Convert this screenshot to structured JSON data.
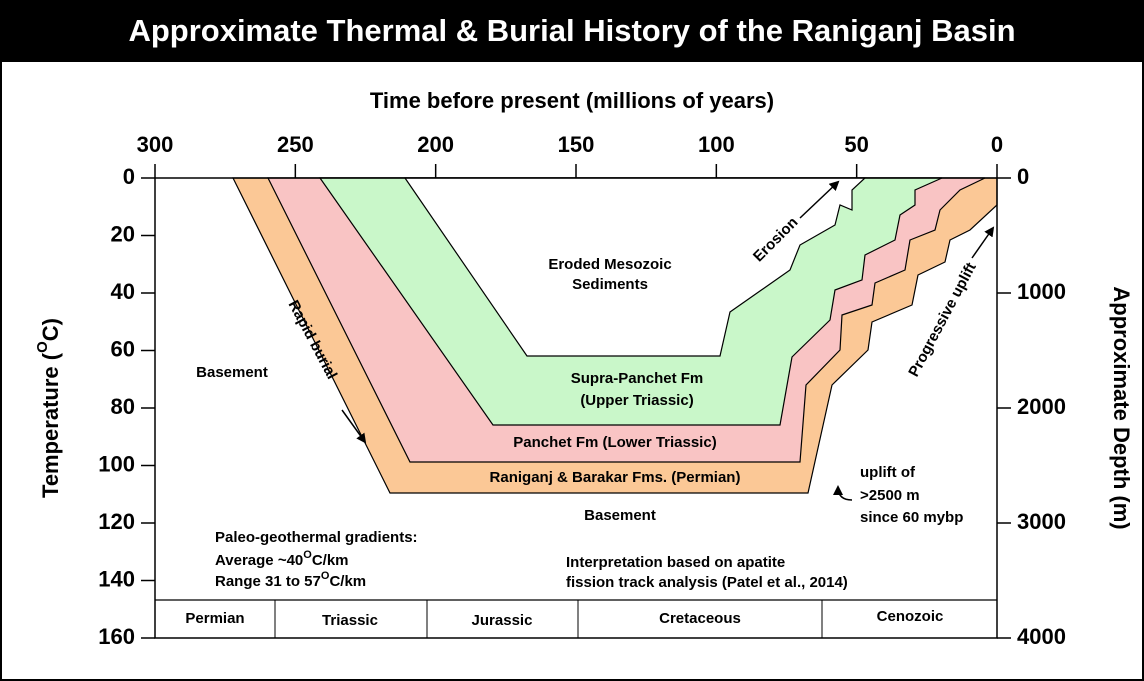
{
  "title": "Approximate Thermal & Burial History of the Raniganj Basin",
  "x_axis": {
    "label": "Time before present (millions of years)",
    "lim": [
      300,
      0
    ],
    "ticks": [
      300,
      250,
      200,
      150,
      100,
      50,
      0
    ]
  },
  "y_axis": {
    "label_parts": [
      "Temperature (",
      "O",
      "C)"
    ],
    "lim": [
      0,
      160
    ],
    "ticks": [
      0,
      20,
      40,
      60,
      80,
      100,
      120,
      140,
      160
    ]
  },
  "y2_axis": {
    "label": "Approximate Depth (m)",
    "lim": [
      0,
      4000
    ],
    "ticks": [
      0,
      1000,
      2000,
      3000,
      4000
    ]
  },
  "regions": {
    "eroded": [
      "Eroded Mesozoic",
      "Sediments"
    ],
    "supra_panchet": [
      "Supra-Panchet Fm",
      "(Upper Triassic)"
    ],
    "panchet": "Panchet Fm (Lower Triassic)",
    "raniganj": "Raniganj & Barakar Fms. (Permian)",
    "basement_left": "Basement",
    "basement_bottom": "Basement"
  },
  "annotations": {
    "rapid_burial": "Rapid burial",
    "erosion": "Erosion",
    "progressive_uplift": "Progressive uplift",
    "uplift": [
      "uplift of",
      ">2500 m",
      "since 60 mybp"
    ],
    "gradients": {
      "heading": "Paleo-geothermal gradients:",
      "average": [
        "Average ~40",
        "O",
        "C/km"
      ],
      "range": [
        "Range 31 to 57",
        "O",
        "C/km"
      ]
    },
    "interpretation": [
      "Interpretation based on apatite",
      "fission track analysis (Patel et al., 2014)"
    ]
  },
  "periods": [
    "Permian",
    "Triassic",
    "Jurassic",
    "Cretaceous",
    "Cenozoic"
  ]
}
